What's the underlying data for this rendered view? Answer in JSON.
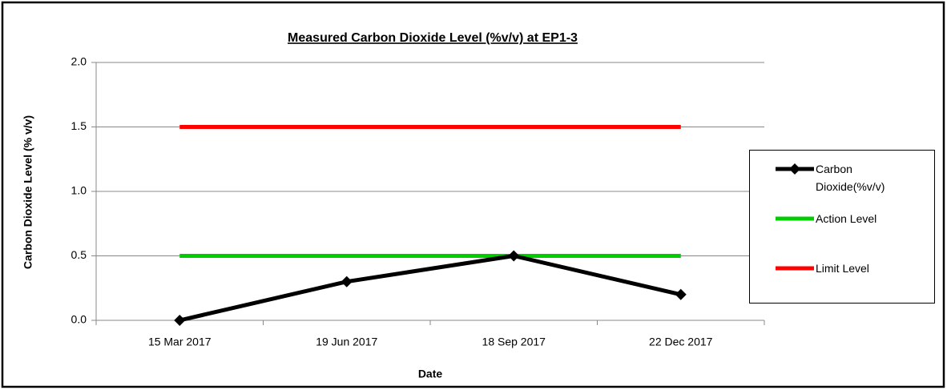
{
  "chart_data": {
    "type": "line",
    "title": "Measured Carbon Dioxide Level (%v/v) at EP1-3",
    "xlabel": "Date",
    "ylabel": "Carbon Dioxide Level (% v/v)",
    "categories": [
      "15 Mar 2017",
      "19 Jun 2017",
      "18 Sep 2017",
      "22 Dec 2017"
    ],
    "series": [
      {
        "name": "Carbon Dioxide(%v/v)",
        "color": "#000000",
        "marker": "diamond",
        "values": [
          0,
          0.3,
          0.5,
          0.2
        ]
      },
      {
        "name": "Action Level",
        "color": "#00cc00",
        "values": [
          0.5,
          0.5,
          0.5,
          0.5
        ]
      },
      {
        "name": "Limit Level",
        "color": "#ff0000",
        "values": [
          1.5,
          1.5,
          1.5,
          1.5
        ]
      }
    ],
    "ylim": [
      0,
      2
    ],
    "yticks": [
      {
        "value": 0,
        "label": "0.0"
      },
      0.5,
      {
        "value": 1,
        "label": "1.0"
      },
      1.5,
      {
        "value": 2,
        "label": "2.0"
      }
    ],
    "grid": true,
    "legend": "right"
  }
}
